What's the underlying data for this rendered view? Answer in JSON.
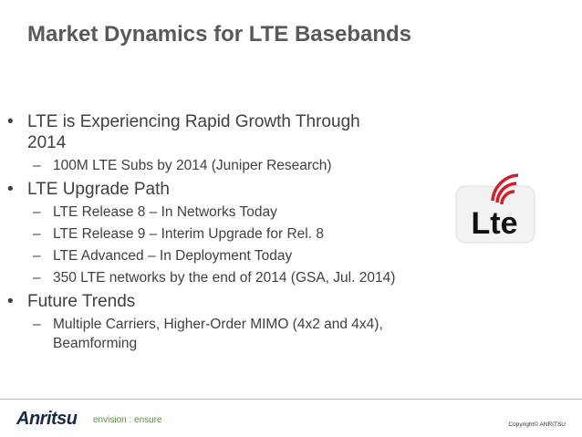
{
  "title": "Market Dynamics for LTE Basebands",
  "bullets": [
    {
      "text": "LTE is Experiencing Rapid Growth Through 2014",
      "subs": [
        "100M LTE Subs by 2014 (Juniper Research)"
      ]
    },
    {
      "text": "LTE Upgrade Path",
      "subs": [
        "LTE Release 8 – In Networks Today",
        "LTE Release 9 – Interim Upgrade for Rel. 8",
        "LTE Advanced – In Deployment Today",
        "350 LTE networks by the end of 2014 (GSA, Jul. 2014)"
      ]
    },
    {
      "text": "Future Trends",
      "subs": [
        "Multiple Carriers, Higher-Order MIMO (4x2 and 4x4), Beamforming"
      ]
    }
  ],
  "logo": {
    "text": "Lte"
  },
  "footer": {
    "brand": "Anritsu",
    "tagline": "envision : ensure",
    "copyright": "Copyright© ANRITSU"
  }
}
